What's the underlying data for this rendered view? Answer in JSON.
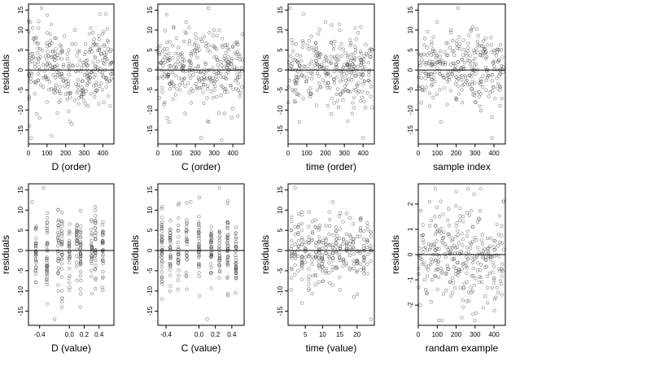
{
  "figure": {
    "ylabel": "residuals"
  },
  "chart_data": [
    {
      "type": "scatter",
      "xlabel": "D (order)",
      "ylabel": "residuals",
      "xlim": [
        0,
        460
      ],
      "ylim": [
        -18.5,
        16.5
      ],
      "xticks": [
        0,
        100,
        200,
        300,
        400
      ],
      "xtick_labels": [
        "0",
        "100",
        "200",
        "300",
        "400"
      ],
      "yticks": [
        -15,
        -10,
        -5,
        0,
        5,
        10,
        15
      ],
      "ytick_labels": [
        "-15",
        "-10",
        "-5",
        "0",
        "5",
        "10",
        "15"
      ],
      "reference_line": 0,
      "points": [
        [
          10,
          12
        ],
        [
          22,
          10.5
        ],
        [
          35,
          7
        ],
        [
          45,
          -11
        ],
        [
          70,
          15.5
        ],
        [
          100,
          -8
        ],
        [
          125,
          -16.5
        ],
        [
          150,
          8
        ],
        [
          180,
          5
        ],
        [
          210,
          4
        ],
        [
          240,
          1
        ],
        [
          270,
          -7
        ],
        [
          300,
          -6
        ],
        [
          330,
          -3
        ],
        [
          360,
          3
        ],
        [
          390,
          4
        ],
        [
          410,
          6
        ],
        [
          430,
          7
        ],
        [
          445,
          5
        ],
        [
          455,
          2
        ],
        [
          15,
          -17
        ],
        [
          60,
          -12
        ],
        [
          320,
          -9
        ],
        [
          200,
          -6
        ],
        [
          250,
          10
        ]
      ],
      "point_count_approx": 460,
      "marker": "open-circle"
    },
    {
      "type": "scatter",
      "xlabel": "C (order)",
      "ylabel": "residuals",
      "xlim": [
        0,
        460
      ],
      "ylim": [
        -18.5,
        16.5
      ],
      "xticks": [
        0,
        100,
        200,
        300,
        400
      ],
      "xtick_labels": [
        "0",
        "100",
        "200",
        "300",
        "400"
      ],
      "yticks": [
        -15,
        -10,
        -5,
        0,
        5,
        10,
        15
      ],
      "ytick_labels": [
        "-15",
        "-10",
        "-5",
        "0",
        "5",
        "10",
        "15"
      ],
      "reference_line": 0,
      "points": [
        [
          270,
          15.5
        ],
        [
          150,
          12
        ],
        [
          50,
          -12
        ],
        [
          60,
          -13
        ],
        [
          230,
          -17
        ],
        [
          340,
          -17.5
        ],
        [
          100,
          8
        ],
        [
          200,
          9
        ],
        [
          300,
          10
        ],
        [
          400,
          6
        ],
        [
          450,
          9
        ]
      ],
      "point_count_approx": 460,
      "marker": "open-circle"
    },
    {
      "type": "scatter",
      "xlabel": "time (order)",
      "ylabel": "residuals",
      "xlim": [
        0,
        460
      ],
      "ylim": [
        -18.5,
        16.5
      ],
      "xticks": [
        0,
        100,
        200,
        300,
        400
      ],
      "xtick_labels": [
        "0",
        "100",
        "200",
        "300",
        "400"
      ],
      "yticks": [
        -15,
        -10,
        -5,
        0,
        5,
        10,
        15
      ],
      "ytick_labels": [
        "-15",
        "-10",
        "-5",
        "0",
        "5",
        "10",
        "15"
      ],
      "reference_line": 0,
      "points": [
        [
          10,
          15.5
        ],
        [
          200,
          12
        ],
        [
          60,
          -13
        ],
        [
          230,
          -11
        ],
        [
          400,
          -17
        ],
        [
          440,
          4
        ]
      ],
      "point_count_approx": 460,
      "marker": "open-circle"
    },
    {
      "type": "scatter",
      "xlabel": "sample index",
      "ylabel": "residuals",
      "xlim": [
        0,
        460
      ],
      "ylim": [
        -18.5,
        16.5
      ],
      "xticks": [
        0,
        100,
        200,
        300,
        400
      ],
      "xtick_labels": [
        "0",
        "100",
        "200",
        "300",
        "400"
      ],
      "yticks": [
        -15,
        -10,
        -5,
        0,
        5,
        10,
        15
      ],
      "ytick_labels": [
        "-15",
        "-10",
        "-5",
        "0",
        "5",
        "10",
        "15"
      ],
      "reference_line": 0,
      "points": [
        [
          210,
          15.5
        ],
        [
          100,
          12
        ],
        [
          120,
          -13
        ],
        [
          390,
          -17
        ],
        [
          300,
          -8
        ]
      ],
      "point_count_approx": 460,
      "marker": "open-circle"
    },
    {
      "type": "scatter",
      "xlabel": "D (value)",
      "ylabel": "residuals",
      "xlim": [
        -0.55,
        0.6
      ],
      "ylim": [
        -18.5,
        16.5
      ],
      "xticks": [
        -0.4,
        0.0,
        0.2,
        0.4
      ],
      "xtick_labels": [
        "-0.4",
        "0.0",
        "0.2",
        "0.4"
      ],
      "yticks": [
        -15,
        -10,
        -5,
        0,
        5,
        10,
        15
      ],
      "ytick_labels": [
        "-15",
        "-10",
        "-5",
        "0",
        "5",
        "10",
        "15"
      ],
      "reference_line": 0,
      "columns_x": [
        -0.45,
        -0.3,
        -0.15,
        -0.1,
        0.0,
        0.1,
        0.15,
        0.3,
        0.35,
        0.45
      ],
      "points": [
        [
          -0.35,
          15.5
        ],
        [
          -0.5,
          12
        ],
        [
          -0.1,
          -14
        ],
        [
          -0.2,
          -17
        ]
      ],
      "point_count_approx": 460,
      "marker": "open-circle"
    },
    {
      "type": "scatter",
      "xlabel": "C (value)",
      "ylabel": "residuals",
      "xlim": [
        -0.5,
        0.55
      ],
      "ylim": [
        -18.5,
        16.5
      ],
      "xticks": [
        -0.4,
        0.0,
        0.2,
        0.4
      ],
      "xtick_labels": [
        "-0.4",
        "0.0",
        "0.2",
        "0.4"
      ],
      "yticks": [
        -15,
        -10,
        -5,
        0,
        5,
        10,
        15
      ],
      "ytick_labels": [
        "-15",
        "-10",
        "-5",
        "0",
        "5",
        "10",
        "15"
      ],
      "reference_line": 0,
      "columns_x": [
        -0.45,
        -0.35,
        -0.25,
        -0.15,
        0.0,
        0.15,
        0.25,
        0.35,
        0.45
      ],
      "points": [
        [
          0.25,
          15.5
        ],
        [
          -0.1,
          12
        ],
        [
          -0.45,
          -12
        ],
        [
          0.1,
          -17
        ]
      ],
      "point_count_approx": 460,
      "marker": "open-circle"
    },
    {
      "type": "scatter",
      "xlabel": "time (value)",
      "ylabel": "residuals",
      "xlim": [
        0,
        25
      ],
      "ylim": [
        -18.5,
        16.5
      ],
      "xticks": [
        5,
        10,
        15,
        20
      ],
      "xtick_labels": [
        "5",
        "10",
        "15",
        "20"
      ],
      "yticks": [
        -15,
        -10,
        -5,
        0,
        5,
        10,
        15
      ],
      "ytick_labels": [
        "-15",
        "-10",
        "-5",
        "0",
        "5",
        "10",
        "15"
      ],
      "reference_line": 0,
      "columns_x": [
        1,
        2,
        3,
        4,
        5,
        6,
        7,
        8,
        9,
        10,
        11,
        12,
        13,
        14,
        15,
        16,
        17,
        18,
        19,
        20,
        21,
        22,
        23,
        24
      ],
      "points": [
        [
          2,
          15.5
        ],
        [
          13,
          12
        ],
        [
          24,
          -17
        ],
        [
          4,
          -13
        ]
      ],
      "point_count_approx": 460,
      "marker": "open-circle"
    },
    {
      "type": "scatter",
      "xlabel": "randam example",
      "ylabel": "residuals",
      "xlim": [
        0,
        460
      ],
      "ylim": [
        -2.8,
        2.8
      ],
      "xticks": [
        0,
        100,
        200,
        300,
        400
      ],
      "xtick_labels": [
        "0",
        "100",
        "200",
        "300",
        "400"
      ],
      "yticks": [
        -2,
        -1,
        0,
        1,
        2
      ],
      "ytick_labels": [
        "-2",
        "-1",
        "0",
        "1",
        "2"
      ],
      "reference_line": 0,
      "points": [
        [
          200,
          2.5
        ],
        [
          330,
          2.6
        ],
        [
          230,
          -2.5
        ],
        [
          10,
          -2
        ],
        [
          450,
          2.1
        ]
      ],
      "point_count_approx": 460,
      "marker": "open-circle"
    }
  ]
}
